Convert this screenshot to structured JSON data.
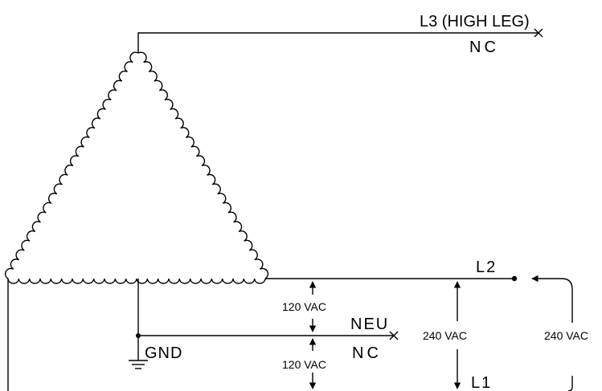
{
  "labels": {
    "l3": "L3 (HIGH LEG)",
    "nc_top": "NC",
    "l2": "L2",
    "neu": "NEU",
    "nc_neu": "NC",
    "gnd": "GND",
    "l1": "L1"
  },
  "measurements": {
    "v120_upper": "120 VAC",
    "v120_lower": "120 VAC",
    "v240_l1_l2": "240 VAC",
    "v240_right": "240 VAC"
  }
}
